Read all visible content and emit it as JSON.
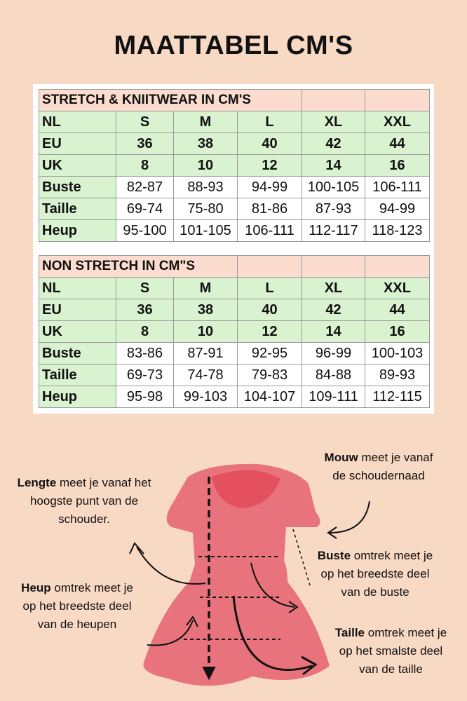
{
  "title": "MAATTABEL CM'S",
  "tables": [
    {
      "heading": "STRETCH & KNIITWEAR IN CM'S",
      "sizes": [
        "NL",
        "S",
        "M",
        "L",
        "XL",
        "XXL"
      ],
      "eu": [
        "EU",
        "36",
        "38",
        "40",
        "42",
        "44"
      ],
      "uk": [
        "UK",
        "8",
        "10",
        "12",
        "14",
        "16"
      ],
      "rows": [
        [
          "Buste",
          "82-87",
          "88-93",
          "94-99",
          "100-105",
          "106-111"
        ],
        [
          "Taille",
          "69-74",
          "75-80",
          "81-86",
          "87-93",
          "94-99"
        ],
        [
          "Heup",
          "95-100",
          "101-105",
          "106-111",
          "112-117",
          "118-123"
        ]
      ]
    },
    {
      "heading": "NON STRETCH IN CM\"S",
      "sizes": [
        "NL",
        "S",
        "M",
        "L",
        "XL",
        "XXL"
      ],
      "eu": [
        "EU",
        "36",
        "38",
        "40",
        "42",
        "44"
      ],
      "uk": [
        "UK",
        "8",
        "10",
        "12",
        "14",
        "16"
      ],
      "rows": [
        [
          "Buste",
          "83-86",
          "87-91",
          "92-95",
          "96-99",
          "100-103"
        ],
        [
          "Taille",
          "69-73",
          "74-78",
          "79-83",
          "84-88",
          "89-93"
        ],
        [
          "Heup",
          "95-98",
          "99-103",
          "104-107",
          "109-111",
          "112-115"
        ]
      ]
    }
  ],
  "notes": {
    "mouw": {
      "bold": "Mouw",
      "rest": " meet je vanaf",
      "line2": "de schoudernaad"
    },
    "lengte": {
      "bold": "Lengte",
      "rest": " meet je vanaf het",
      "line2": "hoogste punt van de",
      "line3": "schouder."
    },
    "buste": {
      "bold": "Buste",
      "rest": " omtrek meet je",
      "line2": "op het breedste deel",
      "line3": "van de buste"
    },
    "heup": {
      "bold": "Heup",
      "rest": " omtrek meet je",
      "line2": "op het breedste deel",
      "line3": "van de heupen"
    },
    "taille": {
      "bold": "Taille",
      "rest": " omtrek meet je",
      "line2": "op het smalste deel",
      "line3": "van de taille"
    }
  },
  "colors": {
    "background": "#f8d9c4",
    "header": "#fbdccf",
    "size_rows": "#d9f2d0",
    "dress": "#e8737d",
    "neck": "#e5505e"
  }
}
